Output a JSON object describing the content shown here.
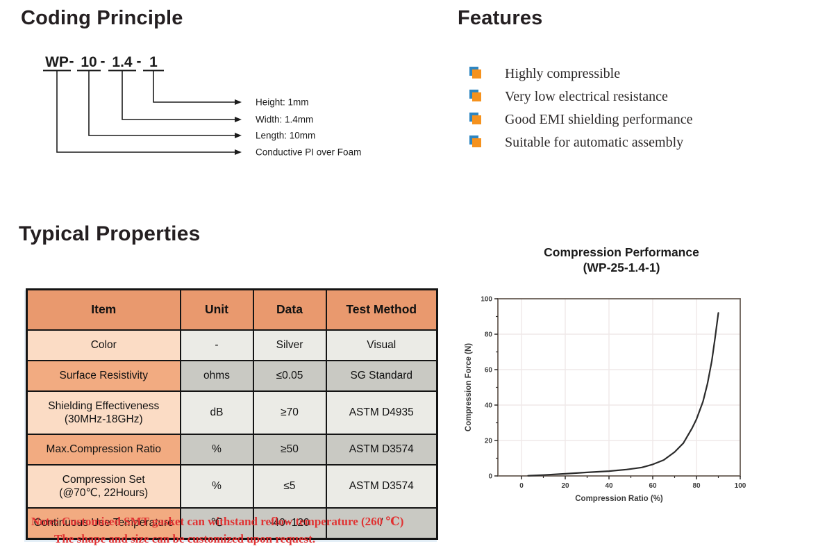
{
  "colors": {
    "header_bg": "#E9996E",
    "item_row_light": "#FBDCC5",
    "item_row_dark": "#F2AB81",
    "cell_light": "#EBEBE6",
    "cell_dark": "#C9C9C3",
    "bullet_orange": "#F5921E",
    "bullet_blue": "#2E86C1",
    "note_red": "#E03232",
    "chart_curve": "#2B2B2B"
  },
  "coding_principle": {
    "title": "Coding Principle",
    "code": {
      "segments": [
        "WP",
        "10",
        "1.4",
        "1"
      ],
      "separator": "-"
    },
    "callouts": [
      {
        "segment": "1",
        "label": "Height: 1mm"
      },
      {
        "segment": "1.4",
        "label": "Width: 1.4mm"
      },
      {
        "segment": "10",
        "label": "Length: 10mm"
      },
      {
        "segment": "WP",
        "label": "Conductive PI over Foam"
      }
    ]
  },
  "features": {
    "title": "Features",
    "items": [
      "Highly compressible",
      "Very low electrical resistance",
      "Good EMI shielding performance",
      "Suitable for automatic assembly"
    ]
  },
  "typical_properties": {
    "title": "Typical Properties",
    "table": {
      "headers": [
        "Item",
        "Unit",
        "Data",
        "Test Method"
      ],
      "rows": [
        {
          "item_lines": [
            "Color"
          ],
          "unit": "-",
          "data": "Silver",
          "method": "Visual"
        },
        {
          "item_lines": [
            "Surface Resistivity"
          ],
          "unit": "ohms",
          "data": "≤0.05",
          "method": "SG Standard"
        },
        {
          "item_lines": [
            "Shielding Effectiveness",
            "(30MHz-18GHz)"
          ],
          "unit": "dB",
          "data": "≥70",
          "method": "ASTM D4935"
        },
        {
          "item_lines": [
            "Max.Compression Ratio"
          ],
          "unit": "%",
          "data": "≥50",
          "method": "ASTM D3574"
        },
        {
          "item_lines": [
            "Compression Set",
            "(@70℃, 22Hours)"
          ],
          "unit": "%",
          "data": "≤5",
          "method": "ASTM D3574"
        },
        {
          "item_lines": [
            "Continuous Use Temperature"
          ],
          "unit": "℃",
          "data": "-40~120",
          "method": "/"
        }
      ]
    },
    "note": {
      "line1": "Note: Customised SMT gasket can withstand reflow temperature (260 ℃)",
      "line2": "The shape and size can be customized upon request."
    }
  },
  "chart_data": {
    "type": "line",
    "title": "Compression Performance",
    "subtitle": "(WP-25-1.4-1)",
    "xlabel": "Compression Ratio (%)",
    "ylabel": "Compression Force (N)",
    "xlim": [
      -10.8,
      100
    ],
    "ylim": [
      0,
      100
    ],
    "xticks": [
      0,
      20,
      40,
      60,
      80,
      100
    ],
    "yticks": [
      0,
      20,
      40,
      60,
      80,
      100
    ],
    "minor_tick_step": 10,
    "grid": true,
    "legend": "none",
    "series": [
      {
        "name": "WP-25-1.4-1",
        "x": [
          3,
          10,
          20,
          30,
          40,
          48,
          55,
          60,
          65,
          70,
          74,
          78,
          80,
          83,
          85,
          87,
          88.5,
          90
        ],
        "y": [
          0.1,
          0.5,
          1.2,
          2.0,
          2.7,
          3.6,
          4.8,
          6.5,
          9,
          13.5,
          18.5,
          27,
          32,
          42,
          52,
          65,
          78,
          92
        ]
      }
    ]
  }
}
